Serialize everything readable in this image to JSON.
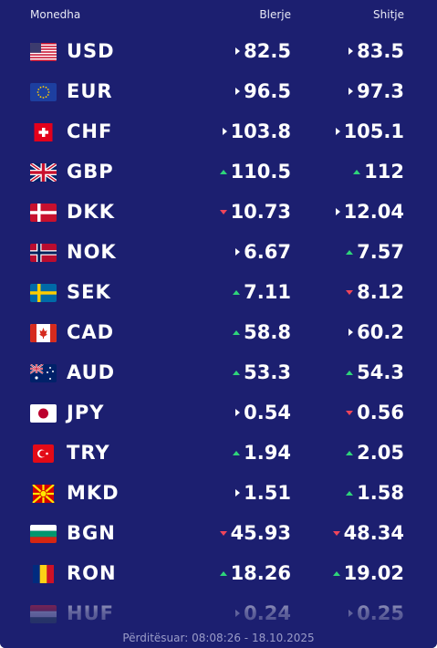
{
  "header": {
    "currency_label": "Monedha",
    "buy_label": "Blerje",
    "sell_label": "Shitje"
  },
  "colors": {
    "background": "#1c1f70",
    "up": "#2ed47a",
    "down": "#f0455a",
    "same": "#ffffff"
  },
  "rates": [
    {
      "code": "USD",
      "flag": "us-flag-icon",
      "buy": "82.5",
      "buy_trend": "same",
      "sell": "83.5",
      "sell_trend": "same"
    },
    {
      "code": "EUR",
      "flag": "eu-flag-icon",
      "buy": "96.5",
      "buy_trend": "same",
      "sell": "97.3",
      "sell_trend": "same"
    },
    {
      "code": "CHF",
      "flag": "ch-flag-icon",
      "buy": "103.8",
      "buy_trend": "same",
      "sell": "105.1",
      "sell_trend": "same"
    },
    {
      "code": "GBP",
      "flag": "gb-flag-icon",
      "buy": "110.5",
      "buy_trend": "up",
      "sell": "112",
      "sell_trend": "up"
    },
    {
      "code": "DKK",
      "flag": "dk-flag-icon",
      "buy": "10.73",
      "buy_trend": "down",
      "sell": "12.04",
      "sell_trend": "same"
    },
    {
      "code": "NOK",
      "flag": "no-flag-icon",
      "buy": "6.67",
      "buy_trend": "same",
      "sell": "7.57",
      "sell_trend": "up"
    },
    {
      "code": "SEK",
      "flag": "se-flag-icon",
      "buy": "7.11",
      "buy_trend": "up",
      "sell": "8.12",
      "sell_trend": "down"
    },
    {
      "code": "CAD",
      "flag": "ca-flag-icon",
      "buy": "58.8",
      "buy_trend": "up",
      "sell": "60.2",
      "sell_trend": "same"
    },
    {
      "code": "AUD",
      "flag": "au-flag-icon",
      "buy": "53.3",
      "buy_trend": "up",
      "sell": "54.3",
      "sell_trend": "up"
    },
    {
      "code": "JPY",
      "flag": "jp-flag-icon",
      "buy": "0.54",
      "buy_trend": "same",
      "sell": "0.56",
      "sell_trend": "down"
    },
    {
      "code": "TRY",
      "flag": "tr-flag-icon",
      "buy": "1.94",
      "buy_trend": "up",
      "sell": "2.05",
      "sell_trend": "up"
    },
    {
      "code": "MKD",
      "flag": "mk-flag-icon",
      "buy": "1.51",
      "buy_trend": "same",
      "sell": "1.58",
      "sell_trend": "up"
    },
    {
      "code": "BGN",
      "flag": "bg-flag-icon",
      "buy": "45.93",
      "buy_trend": "down",
      "sell": "48.34",
      "sell_trend": "down"
    },
    {
      "code": "RON",
      "flag": "ro-flag-icon",
      "buy": "18.26",
      "buy_trend": "up",
      "sell": "19.02",
      "sell_trend": "up"
    },
    {
      "code": "HUF",
      "flag": "hu-flag-icon",
      "buy": "0.24",
      "buy_trend": "same",
      "sell": "0.25",
      "sell_trend": "same"
    }
  ],
  "footer": {
    "updated": "Përditësuar: 08:08:26 - 18.10.2025"
  }
}
